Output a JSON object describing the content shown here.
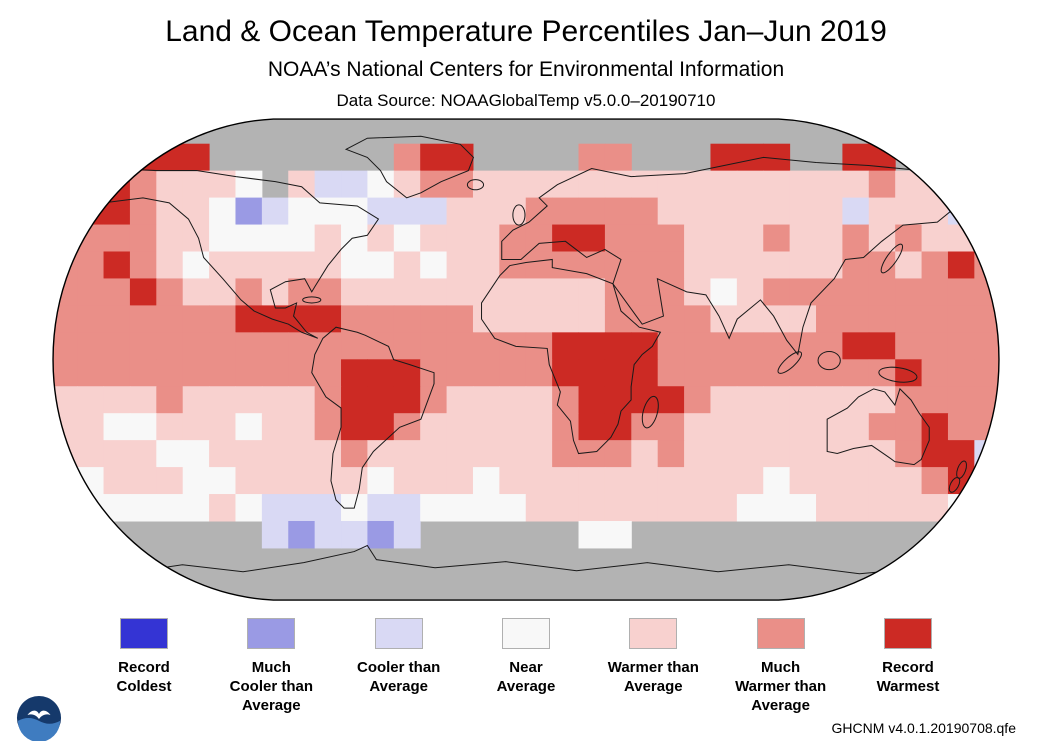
{
  "header": {
    "title": "Land & Ocean Temperature Percentiles Jan–Jun 2019",
    "subtitle": "NOAA’s National Centers for Environmental Information",
    "data_source": "Data Source: NOAAGlobalTemp v5.0.0–20190710"
  },
  "footer": {
    "dataset_version": "GHCNM v4.0.1.20190708.qfe"
  },
  "logo": {
    "name": "NOAA emblem"
  },
  "legend": {
    "items": [
      {
        "code": "0",
        "label": "Record\nColdest",
        "color": "#3434d4"
      },
      {
        "code": "1",
        "label": "Much\nCooler than\nAverage",
        "color": "#9a9ae4"
      },
      {
        "code": "2",
        "label": "Cooler than\nAverage",
        "color": "#d9d9f4"
      },
      {
        "code": "3",
        "label": "Near\nAverage",
        "color": "#f8f8f8"
      },
      {
        "code": "4",
        "label": "Warmer than\nAverage",
        "color": "#f8d1cf"
      },
      {
        "code": "5",
        "label": "Much\nWarmer than\nAverage",
        "color": "#ea8f88"
      },
      {
        "code": "6",
        "label": "Record\nWarmest",
        "color": "#cc2a24"
      }
    ]
  },
  "chart_data": {
    "type": "heatmap",
    "title": "Land & Ocean Temperature Percentiles Jan–Jun 2019",
    "projection": "robinson",
    "grid_degrees": 10,
    "legend_position": "bottom",
    "missing_color": "#b3b3b3",
    "categories": [
      "Record Coldest",
      "Much Cooler than Average",
      "Cooler than Average",
      "Near Average",
      "Warmer than Average",
      "Much Warmer than Average",
      "Record Warmest"
    ],
    "palette": {
      "0": "#3434d4",
      "1": "#9a9ae4",
      "2": "#d9d9f4",
      "3": "#f8f8f8",
      "4": "#f8d1cf",
      "5": "#ea8f88",
      "6": "#cc2a24"
    },
    "grid_note": "18 rows of 10-deg latitude (90N to 90S) x 36 cols of 10-deg longitude (180W to 180E); G = missing/gray",
    "grid": [
      "GGGGGGGGGGGGGGGGGGGGGGGGGGGGGGGGGGGG",
      "GGG666GGGGGGG566GGGG55GGG666GG66GGGG",
      "56654443G422345544444444444444454456",
      "566544312333222444555554444444244425",
      "455544333343434445566555444544545445",
      "556543444443343445555555444444554565",
      "555654454554444444444555434555555555",
      "555555566665555544444555544445555555",
      "555555555555555555566665555555665555",
      "555555555556665555566665555555556555",
      "444454444456665444456666544444445555",
      "443344434456654444456655444444455655",
      "444433444445444444455545444444445662",
      "434443344444344434444444444344444566",
      "333333432223223333444444443334444433",
      "GGGGGGGG212212GGGGGG33GGGGGGGGGGGGGG",
      "GGGGGGGGGGGGGGGGGGGGGGGGGGGGGGGGGGGG",
      "GGGGGGGGGGGGGGGGGGGGGGGGGGGGGGGGGGGG"
    ]
  }
}
